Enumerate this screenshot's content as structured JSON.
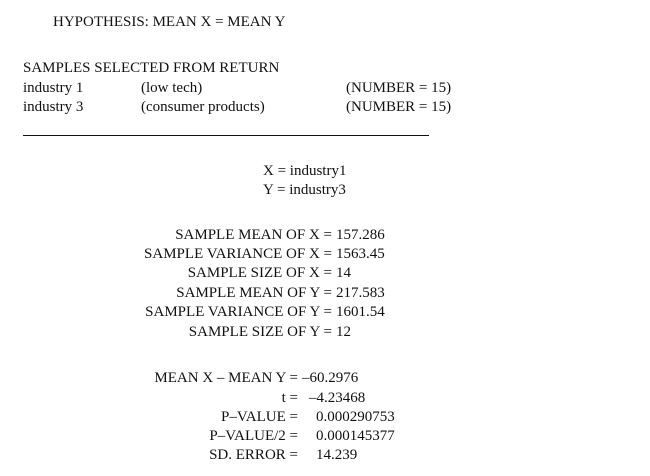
{
  "hypothesis": "HYPOTHESIS: MEAN X = MEAN Y",
  "samples_heading": "SAMPLES SELECTED FROM RETURN",
  "samples": [
    {
      "name": "industry 1",
      "desc": "(low tech)",
      "count": "(NUMBER = 15)"
    },
    {
      "name": "industry 3",
      "desc": "(consumer products)",
      "count": "(NUMBER = 15)"
    }
  ],
  "definitions": {
    "x": "X = industry1",
    "y": "Y = industry3"
  },
  "stats": [
    {
      "label": "SAMPLE MEAN OF X =",
      "value": "157.286"
    },
    {
      "label": "SAMPLE VARIANCE OF X =",
      "value": "1563.45"
    },
    {
      "label": "SAMPLE SIZE OF X =",
      "value": "14"
    },
    {
      "label": "SAMPLE MEAN OF Y =",
      "value": "217.583"
    },
    {
      "label": "SAMPLE VARIANCE OF Y =",
      "value": "1601.54"
    },
    {
      "label": "SAMPLE SIZE OF Y =",
      "value": "12"
    }
  ],
  "results": [
    {
      "label": "MEAN X – MEAN Y =",
      "value": "–60.2976"
    },
    {
      "label": "t =",
      "value": "–4.23468"
    },
    {
      "label": "P–VALUE =",
      "value": "0.000290753"
    },
    {
      "label": "P–VALUE/2 =",
      "value": "0.000145377"
    },
    {
      "label": "SD. ERROR =",
      "value": "14.239"
    }
  ]
}
